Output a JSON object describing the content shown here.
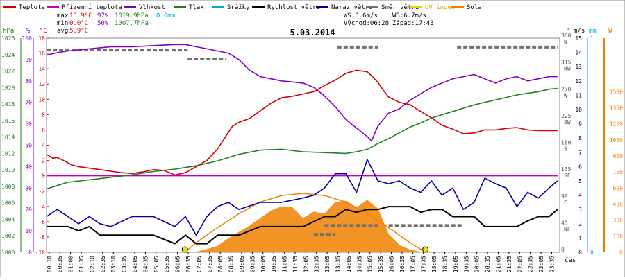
{
  "chart_data": {
    "type": "line",
    "title": "5.03.2014",
    "legend": [
      {
        "name": "Teplota",
        "color": "#d40000"
      },
      {
        "name": "Přízemní teplota",
        "color": "#c000c0"
      },
      {
        "name": "Vlhkost",
        "color": "#8000c0"
      },
      {
        "name": "Tlak",
        "color": "#208020"
      },
      {
        "name": "Srážky",
        "color": "#00aacc"
      },
      {
        "name": "Rychlost větru",
        "color": "#000000"
      },
      {
        "name": "Náraz větru",
        "color": "#0000a0"
      },
      {
        "name": "Směr větru",
        "color": "#707070"
      },
      {
        "name": "UV index",
        "color": "#f0d000"
      },
      {
        "name": "Solar",
        "color": "#f08000"
      }
    ],
    "stats": {
      "max": {
        "label": "max",
        "temp": "13.9°C",
        "hum": "97%",
        "press": "1019.9hPa",
        "rain": "0.0mm"
      },
      "min": {
        "label": "min",
        "temp": "0.0°C",
        "hum": "50%",
        "press": "1007.7hPa"
      },
      "avg": {
        "label": "avg",
        "temp": "5.9°C"
      }
    },
    "wind_info": {
      "ws": "WS:3.6m/s",
      "wg": "WG:6.7m/s",
      "sunrise": "Východ:06:28",
      "sunset": "Západ:17:43"
    },
    "axes": {
      "hpa_label": "hPa",
      "pct_label": "%",
      "c_label": "°C",
      "dir_label": "°",
      "ms_label": "m/s",
      "mm_label": "mm",
      "w_label": "W",
      "hpa_ticks": [
        "1026",
        "1024",
        "1022",
        "1020",
        "1018",
        "1016",
        "1014",
        "1012",
        "1010",
        "1008",
        "1006",
        "1004",
        "1002",
        "1000"
      ],
      "pct_ticks": [
        "100",
        "90",
        "80",
        "70",
        "60",
        "50",
        "40",
        "30",
        "20",
        "10",
        "0"
      ],
      "c_ticks": [
        "18",
        "16",
        "14",
        "12",
        "10",
        "8",
        "6",
        "4",
        "2",
        "0",
        "-2",
        "-4",
        "-6",
        "-8",
        "-10"
      ],
      "dir_ticks": [
        {
          "deg": "360",
          "dir": "N"
        },
        {
          "deg": "315",
          "dir": "NW"
        },
        {
          "deg": "270",
          "dir": "W"
        },
        {
          "deg": "225",
          "dir": "SW"
        },
        {
          "deg": "180",
          "dir": "S"
        },
        {
          "deg": "135",
          "dir": "SE"
        },
        {
          "deg": "90",
          "dir": "E"
        },
        {
          "deg": "45",
          "dir": "NE"
        },
        {
          "deg": "0",
          "dir": ""
        }
      ],
      "ms_ticks": [
        "15",
        "14",
        "13",
        "12",
        "11",
        "10",
        "9",
        "8",
        "7",
        "6",
        "5",
        "4",
        "3",
        "2",
        "1",
        "0"
      ],
      "mm_ticks": [
        "1",
        "0"
      ],
      "w_ticks": [
        "1500",
        "1350",
        "1200",
        "1050",
        "900",
        "750",
        "600",
        "450",
        "300",
        "150",
        "0"
      ],
      "time_ticks": [
        "00:10",
        "00:35",
        "01:00",
        "01:35",
        "02:10",
        "02:35",
        "03:10",
        "03:35",
        "04:05",
        "04:35",
        "05:05",
        "05:35",
        "06:05",
        "06:35",
        "07:05",
        "07:35",
        "08:05",
        "08:35",
        "09:05",
        "09:35",
        "10:05",
        "10:35",
        "11:05",
        "11:35",
        "12:05",
        "12:35",
        "13:05",
        "13:35",
        "14:05",
        "14:35",
        "15:05",
        "15:35",
        "16:05",
        "16:35",
        "17:05",
        "17:35",
        "18:05",
        "18:35",
        "19:05",
        "19:35",
        "20:05",
        "20:35",
        "21:05",
        "21:35",
        "22:05",
        "22:35",
        "23:05",
        "23:35"
      ],
      "x_label": "čas",
      "hour_range": [
        0,
        24
      ]
    },
    "series": [
      {
        "name": "Teplota",
        "unit": "°C",
        "color": "#d40000",
        "x": [
          0,
          0.3,
          0.5,
          0.8,
          1.2,
          1.5,
          2,
          2.5,
          3,
          3.5,
          4,
          4.5,
          5,
          5.5,
          6,
          6.5,
          7,
          7.5,
          8,
          8.3,
          8.7,
          9,
          9.5,
          10,
          10.5,
          11,
          11.5,
          12,
          12.5,
          13,
          13.5,
          14,
          14.5,
          15,
          15.2,
          15.5,
          15.8,
          16,
          16.5,
          17,
          17.5,
          18,
          18.5,
          19,
          19.5,
          20,
          20.5,
          21,
          21.5,
          22,
          22.5,
          23,
          23.5,
          23.9
        ],
        "y": [
          2.8,
          2.3,
          2.4,
          2,
          1.4,
          1.2,
          1,
          0.8,
          0.6,
          0.4,
          0.3,
          0.5,
          0.8,
          0.7,
          0.1,
          0.4,
          1.2,
          2,
          3.5,
          4.8,
          6.5,
          7,
          7.5,
          8.5,
          9.5,
          10.2,
          10.4,
          10.7,
          11,
          11.8,
          12.5,
          13.4,
          13.8,
          13.6,
          13.1,
          12.2,
          11,
          10.3,
          9.6,
          9.3,
          8.4,
          7.6,
          6.6,
          6.1,
          5.5,
          5.6,
          6,
          6,
          6.2,
          6.3,
          6,
          5.9,
          5.9,
          5.9
        ]
      },
      {
        "name": "Přízemní teplota",
        "unit": "°C",
        "color": "#c000c0",
        "x": [
          0,
          23.9
        ],
        "y": [
          0,
          0
        ]
      },
      {
        "name": "Vlhkost",
        "unit": "%",
        "color": "#8000c0",
        "x": [
          0,
          0.4,
          1,
          2,
          3,
          4,
          5,
          6,
          6.5,
          7,
          7.5,
          8,
          8.5,
          9,
          9.5,
          10,
          10.5,
          11,
          11.5,
          12,
          12.5,
          13,
          13.5,
          14,
          14.5,
          15,
          15.2,
          15.5,
          16,
          16.5,
          17,
          17.5,
          18,
          18.5,
          19,
          19.5,
          20,
          20.5,
          21,
          21.5,
          22,
          22.5,
          23,
          23.5,
          23.9
        ],
        "y": [
          92,
          93,
          94,
          95,
          96,
          96,
          96.5,
          97,
          97,
          96,
          95,
          94,
          93,
          90,
          85,
          82,
          81,
          80,
          79.5,
          79,
          77,
          73,
          68,
          62,
          58,
          54,
          52,
          59,
          65,
          67,
          71,
          74,
          77,
          79,
          81,
          82,
          83,
          81,
          79,
          81,
          82,
          80,
          81,
          82,
          82
        ]
      },
      {
        "name": "Tlak",
        "unit": "hPa",
        "color": "#208020",
        "x": [
          0,
          0.5,
          1,
          2,
          3,
          4,
          5,
          6,
          7,
          8,
          9,
          10,
          11,
          12,
          13,
          14,
          14.5,
          15,
          15.5,
          16,
          16.5,
          17,
          17.5,
          18,
          18.5,
          19,
          19.5,
          20,
          20.5,
          21,
          21.5,
          22,
          22.5,
          23,
          23.5,
          23.9
        ],
        "y": [
          1007.7,
          1008.1,
          1008.5,
          1008.8,
          1009.1,
          1009.4,
          1009.8,
          1010.1,
          1010.5,
          1011.1,
          1011.9,
          1012.4,
          1012.5,
          1012.2,
          1012.1,
          1012,
          1012.2,
          1012.5,
          1013.2,
          1013.8,
          1014.5,
          1015.2,
          1015.7,
          1016.3,
          1016.7,
          1017.1,
          1017.5,
          1017.9,
          1018.2,
          1018.5,
          1018.8,
          1019.1,
          1019.3,
          1019.5,
          1019.8,
          1019.9
        ]
      },
      {
        "name": "Rychlost větru",
        "unit": "m/s",
        "color": "#000000",
        "x": [
          0,
          1,
          1.5,
          2,
          2.5,
          3,
          4,
          5,
          6,
          6.5,
          7,
          7.5,
          8,
          9,
          10,
          11,
          12,
          13,
          13.5,
          14,
          14.5,
          15,
          15.5,
          16,
          16.5,
          17,
          17.5,
          18,
          18.5,
          19,
          19.5,
          20,
          20.5,
          21,
          21.5,
          22,
          22.5,
          23,
          23.5,
          23.9
        ],
        "y": [
          1.8,
          1.8,
          1.5,
          1.8,
          1.2,
          1.2,
          1.2,
          1.2,
          0.6,
          1.2,
          0.6,
          0.6,
          1.2,
          1.2,
          1.8,
          1.8,
          1.8,
          2.5,
          2.5,
          3,
          2.8,
          3,
          3,
          3.2,
          3.2,
          3.2,
          2.8,
          3,
          3,
          2.5,
          2.5,
          2.5,
          1.8,
          1.8,
          1.8,
          1.8,
          2.2,
          2.5,
          2.5,
          3
        ]
      },
      {
        "name": "Náraz větru",
        "unit": "m/s",
        "color": "#0000a0",
        "x": [
          0,
          0.5,
          1,
          1.5,
          2,
          2.5,
          3,
          4,
          5,
          6,
          6.5,
          7,
          7.5,
          8,
          8.5,
          9,
          10,
          11,
          12,
          12.5,
          13,
          13.5,
          14,
          14.5,
          15,
          15.5,
          16,
          16.5,
          17,
          17.5,
          18,
          18.5,
          19,
          19.5,
          20,
          20.5,
          21,
          21.5,
          22,
          22.5,
          23,
          23.5,
          23.9
        ],
        "y": [
          2.5,
          3,
          2.5,
          2,
          2.5,
          2,
          1.8,
          2.5,
          2.5,
          1.8,
          2.5,
          1.2,
          2.5,
          3.2,
          3.5,
          3,
          3.5,
          3.5,
          3.8,
          4,
          4.5,
          5.5,
          5.5,
          4.2,
          6.5,
          5,
          4.8,
          5,
          4.5,
          4.2,
          5,
          4,
          4.5,
          3,
          3.5,
          5.2,
          4.8,
          4.5,
          3.2,
          4.2,
          3.8,
          4.5,
          5
        ]
      },
      {
        "name": "Solar",
        "unit": "W",
        "color": "#f08000",
        "x": [
          0,
          6.5,
          7,
          7.5,
          8,
          8.5,
          9,
          9.5,
          10,
          10.5,
          11,
          11.5,
          12,
          12.5,
          13,
          13.5,
          14,
          14.5,
          15,
          15.5,
          16,
          16.5,
          17,
          17.5,
          18,
          23.9
        ],
        "y": [
          0,
          0,
          5,
          30,
          60,
          130,
          190,
          250,
          320,
          390,
          430,
          420,
          320,
          380,
          360,
          470,
          480,
          420,
          490,
          410,
          170,
          70,
          25,
          5,
          0,
          0
        ]
      },
      {
        "name": "Solar (teoretické maximum)",
        "unit": "W",
        "color": "#f08000",
        "x": [
          6.47,
          7,
          8,
          9,
          10,
          11,
          12,
          13,
          14,
          15,
          16,
          17,
          17.72
        ],
        "y": [
          0,
          90,
          230,
          360,
          470,
          530,
          550,
          530,
          470,
          360,
          230,
          90,
          0
        ]
      }
    ]
  }
}
